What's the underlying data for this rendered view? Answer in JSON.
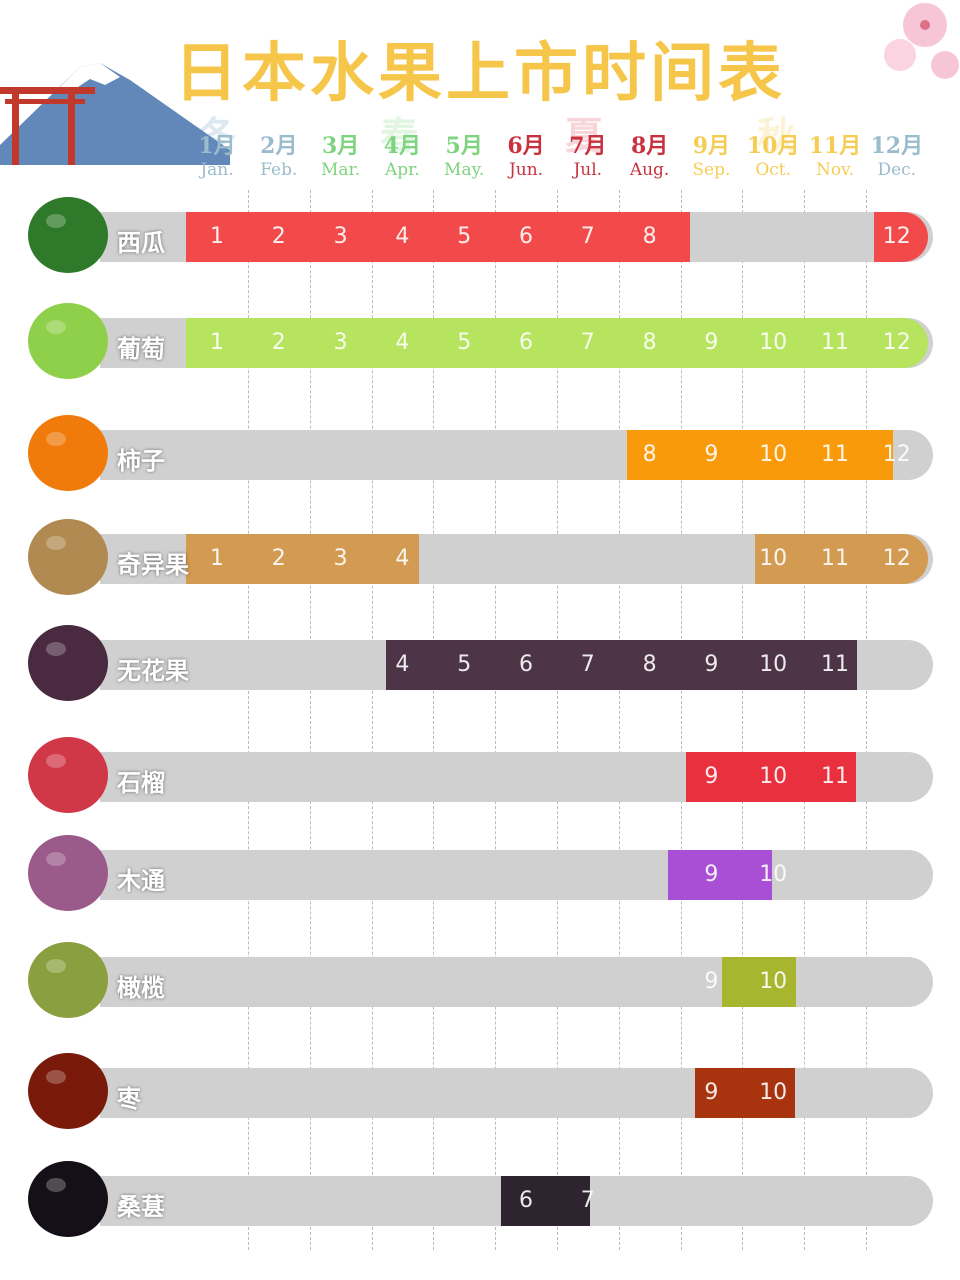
{
  "title": "日本水果上市时间表",
  "seasons": [
    {
      "label": "冬",
      "color": "#6a9cc0"
    },
    {
      "label": "春",
      "color": "#7ed47e"
    },
    {
      "label": "夏",
      "color": "#e04060"
    },
    {
      "label": "秋",
      "color": "#f5c542"
    }
  ],
  "chart_data": {
    "type": "gantt",
    "title": "日本水果上市时间表",
    "months": [
      {
        "cn": "1月",
        "en": "Jan.",
        "color": "#9bbccc"
      },
      {
        "cn": "2月",
        "en": "Feb.",
        "color": "#9bbccc"
      },
      {
        "cn": "3月",
        "en": "Mar.",
        "color": "#7ed47e"
      },
      {
        "cn": "4月",
        "en": "Apr.",
        "color": "#7ed47e"
      },
      {
        "cn": "5月",
        "en": "May.",
        "color": "#7ed47e"
      },
      {
        "cn": "6月",
        "en": "Jun.",
        "color": "#c8323f"
      },
      {
        "cn": "7月",
        "en": "Jul.",
        "color": "#c8323f"
      },
      {
        "cn": "8月",
        "en": "Aug.",
        "color": "#c8323f"
      },
      {
        "cn": "9月",
        "en": "Sep.",
        "color": "#f5cd55"
      },
      {
        "cn": "10月",
        "en": "Oct.",
        "color": "#f5cd55"
      },
      {
        "cn": "11月",
        "en": "Nov.",
        "color": "#f5cd55"
      },
      {
        "cn": "12月",
        "en": "Dec.",
        "color": "#9bbccc"
      }
    ],
    "track_color": "#d0d0d0",
    "fruits": [
      {
        "name": "西瓜",
        "color": "#f24a4a",
        "fruit_color": "#2f7a2a",
        "segments": [
          [
            0.5,
            8.65
          ],
          [
            11.63,
            12.5
          ]
        ],
        "labels": [
          "1",
          "2",
          "3",
          "4",
          "5",
          "6",
          "7",
          "8",
          "12"
        ],
        "label_months": [
          1,
          2,
          3,
          4,
          5,
          6,
          7,
          8,
          12
        ]
      },
      {
        "name": "葡萄",
        "color": "#b6e45f",
        "fruit_color": "#8fd04a",
        "segments": [
          [
            0.5,
            12.5
          ]
        ],
        "labels": [
          "1",
          "2",
          "3",
          "4",
          "5",
          "6",
          "7",
          "8",
          "9",
          "10",
          "11",
          "12"
        ],
        "label_months": [
          1,
          2,
          3,
          4,
          5,
          6,
          7,
          8,
          9,
          10,
          11,
          12
        ]
      },
      {
        "name": "柿子",
        "color": "#f99a0a",
        "fruit_color": "#f07a0a",
        "segments": [
          [
            7.63,
            11.94
          ]
        ],
        "labels": [
          "8",
          "9",
          "10",
          "11",
          "12"
        ],
        "label_months": [
          8,
          9,
          10,
          11,
          12
        ]
      },
      {
        "name": "奇异果",
        "color": "#d39b52",
        "fruit_color": "#b08a50",
        "segments": [
          [
            0.5,
            4.27
          ],
          [
            9.7,
            12.5
          ]
        ],
        "labels": [
          "1",
          "2",
          "3",
          "4",
          "10",
          "11",
          "12"
        ],
        "label_months": [
          1,
          2,
          3,
          4,
          10,
          11,
          12
        ]
      },
      {
        "name": "无花果",
        "color": "#4d3447",
        "fruit_color": "#4a2a40",
        "segments": [
          [
            3.73,
            11.36
          ]
        ],
        "labels": [
          "4",
          "5",
          "6",
          "7",
          "8",
          "9",
          "10",
          "11"
        ],
        "label_months": [
          4,
          5,
          6,
          7,
          8,
          9,
          10,
          11
        ]
      },
      {
        "name": "石榴",
        "color": "#e8303e",
        "fruit_color": "#d03848",
        "segments": [
          [
            8.59,
            11.34
          ]
        ],
        "labels": [
          "9",
          "10",
          "11"
        ],
        "label_months": [
          9,
          10,
          11
        ]
      },
      {
        "name": "木通",
        "color": "#a84fd6",
        "fruit_color": "#9a5a8a",
        "segments": [
          [
            8.3,
            9.98
          ]
        ],
        "labels": [
          "9",
          "10"
        ],
        "label_months": [
          9,
          10
        ]
      },
      {
        "name": "橄榄",
        "color": "#a8b52e",
        "fruit_color": "#8aa040",
        "segments": [
          [
            9.17,
            10.37
          ]
        ],
        "labels": [
          "9",
          "10"
        ],
        "label_months": [
          9,
          10
        ]
      },
      {
        "name": "枣",
        "color": "#a8330f",
        "fruit_color": "#7a1a0a",
        "segments": [
          [
            8.73,
            10.35
          ]
        ],
        "labels": [
          "9",
          "10"
        ],
        "label_months": [
          9,
          10
        ]
      },
      {
        "name": "桑葚",
        "color": "#2d2430",
        "fruit_color": "#151018",
        "segments": [
          [
            5.6,
            7.04
          ]
        ],
        "labels": [
          "6",
          "7"
        ],
        "label_months": [
          6,
          7
        ]
      }
    ]
  }
}
